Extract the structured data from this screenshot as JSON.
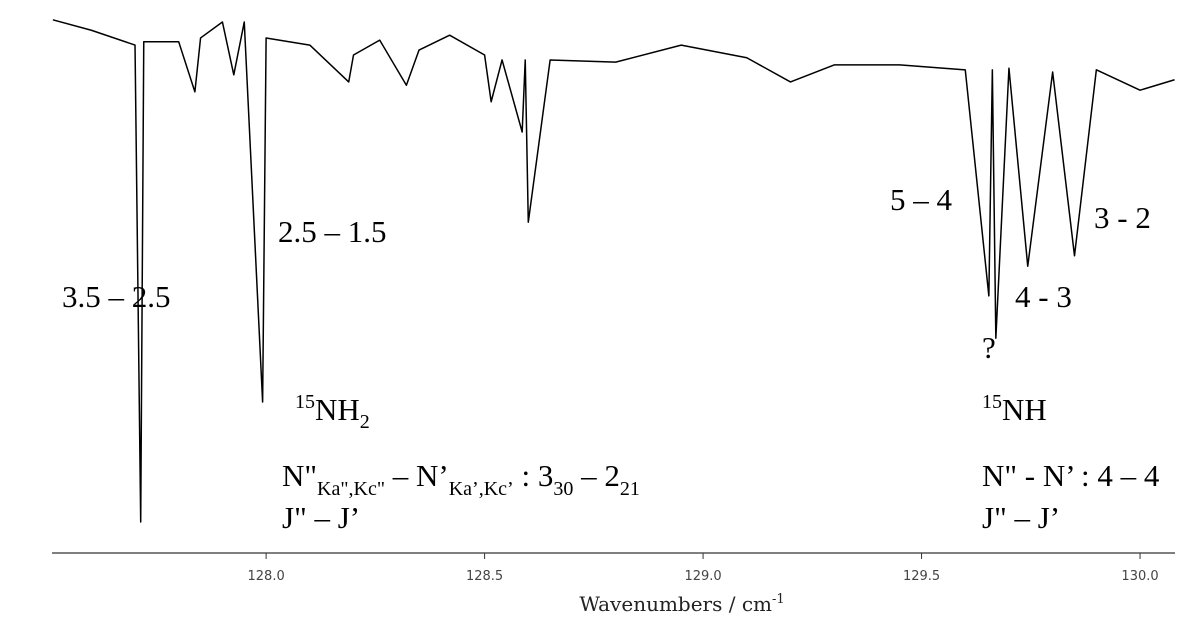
{
  "chart_data": {
    "type": "line",
    "x": [
      127.512,
      127.6,
      127.7,
      127.713,
      127.72,
      127.8,
      127.837,
      127.85,
      127.9,
      127.926,
      127.95,
      127.992,
      128.0,
      128.1,
      128.189,
      128.2,
      128.26,
      128.321,
      128.35,
      128.42,
      128.5,
      128.515,
      128.54,
      128.586,
      128.593,
      128.6,
      128.65,
      128.8,
      128.95,
      129.1,
      129.2,
      129.3,
      129.45,
      129.6,
      129.654,
      129.662,
      129.67,
      129.7,
      129.743,
      129.8,
      129.85,
      129.9,
      130.0,
      130.079
    ],
    "values": [
      96.4,
      94.5,
      91.8,
      5.1,
      92.4,
      92.4,
      83.3,
      93.1,
      96.0,
      86.4,
      96.0,
      26.9,
      93.1,
      91.8,
      85.1,
      90.0,
      92.7,
      84.5,
      90.9,
      93.6,
      90.0,
      81.5,
      89.1,
      76.0,
      89.1,
      59.6,
      89.1,
      88.7,
      91.8,
      89.5,
      85.1,
      88.2,
      88.2,
      87.3,
      46.2,
      87.3,
      38.5,
      87.6,
      51.6,
      86.9,
      53.5,
      87.3,
      83.6,
      85.5
    ],
    "color": "#000000",
    "xlim": [
      127.51,
      130.08
    ],
    "ylim": [
      0,
      100
    ],
    "xticks": [
      {
        "value": 128,
        "label": "128.0"
      },
      {
        "value": 128.5,
        "label": "128.5"
      },
      {
        "value": 129,
        "label": "129.0"
      },
      {
        "value": 129.5,
        "label": "129.5"
      },
      {
        "value": 130,
        "label": "130.0"
      }
    ],
    "xlabel": [
      "Wavenumbers / cm",
      "-1"
    ],
    "annotations": [
      [
        "3.5 – 2.5"
      ],
      [
        "2.5 – 1.5"
      ],
      [
        "5 – 4"
      ],
      [
        "3 - 2"
      ],
      [
        "4 - 3"
      ],
      [
        "?"
      ],
      [
        "15",
        "NH",
        "2"
      ],
      [
        "N\"",
        "Ka\",Kc\"",
        " – N’",
        "Ka’,Kc’",
        " : 3",
        "30",
        " – 2",
        "21"
      ],
      [
        "J\" – J’"
      ],
      [
        "15",
        "NH"
      ],
      [
        "N\" - N’  : 4 – 4"
      ],
      [
        "J\" – J’"
      ]
    ]
  }
}
